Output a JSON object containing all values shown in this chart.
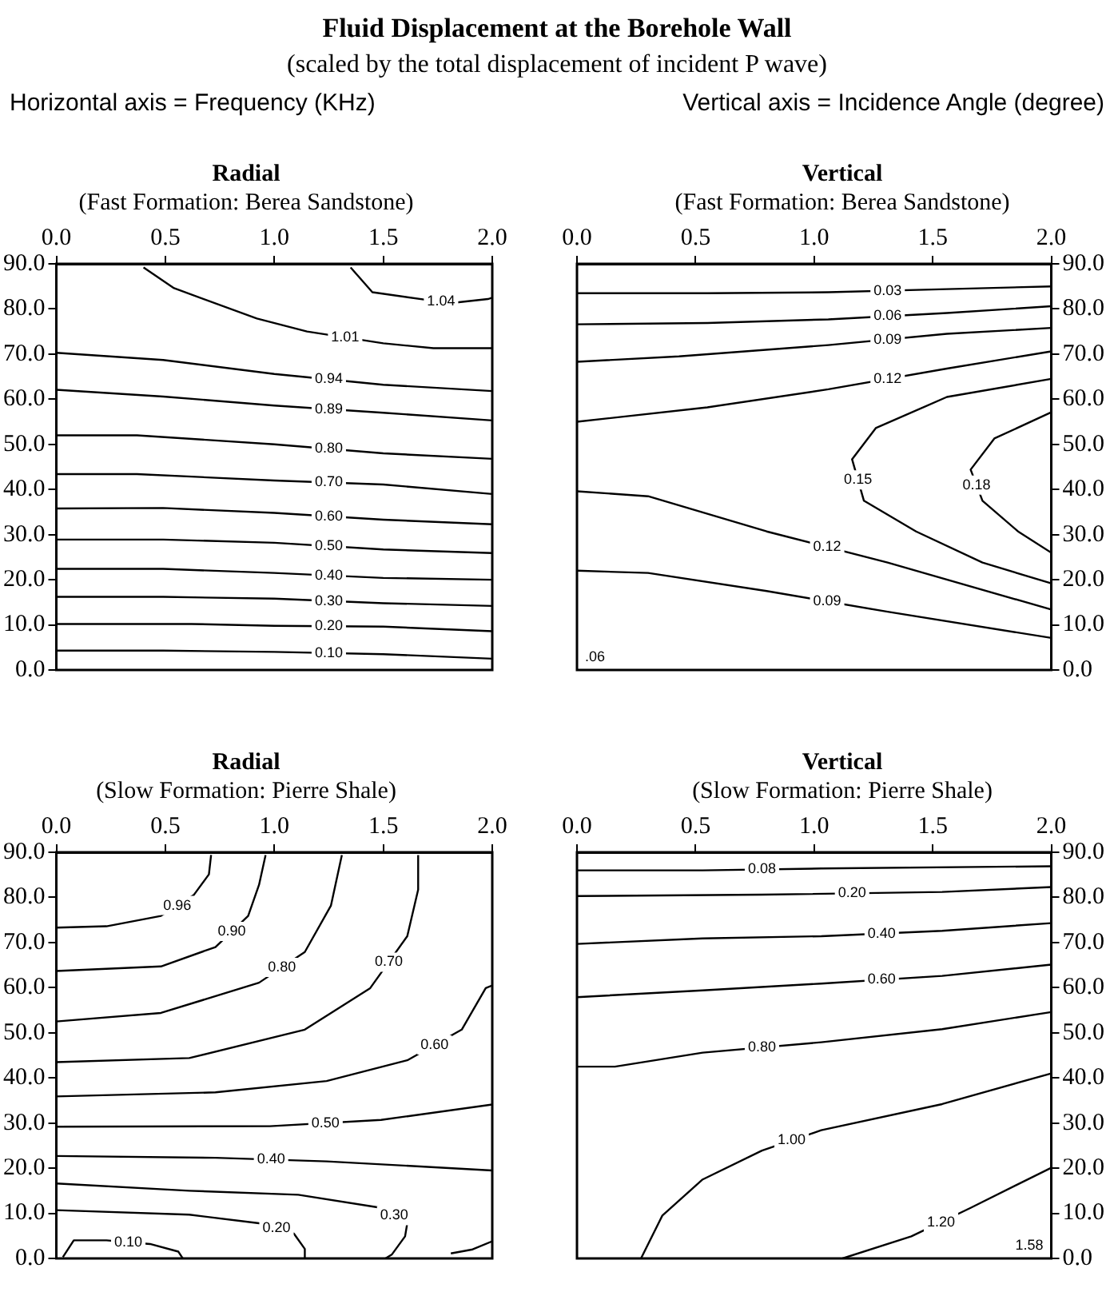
{
  "chart_data": [
    {
      "type": "line",
      "title": "Radial",
      "subtitle": "(Fast Formation: Berea Sandstone)",
      "annotations": [
        "Fluid Displacement at the Borehole Wall",
        "(scaled by the total displacement of incident P wave)",
        "Horizontal axis =  Frequency (KHz)",
        "Vertical axis =  Incidence Angle (degree)"
      ],
      "xlim": [
        0,
        2
      ],
      "xticks": [
        {
          "value": 0,
          "label": "0.0"
        },
        {
          "value": 0.5,
          "label": "0.5"
        },
        {
          "value": 1,
          "label": "1.0"
        },
        {
          "value": 1.5,
          "label": "1.5"
        },
        {
          "value": 2,
          "label": "2.0"
        }
      ],
      "ylim": [
        0,
        90
      ],
      "yticks": [
        {
          "value": 0,
          "label": "0.0"
        },
        {
          "value": 10,
          "label": "10.0"
        },
        {
          "value": 20,
          "label": "20.0"
        },
        {
          "value": 30,
          "label": "30.0"
        },
        {
          "value": 40,
          "label": "40.0"
        },
        {
          "value": 50,
          "label": "50.0"
        },
        {
          "value": 60,
          "label": "60.0"
        },
        {
          "value": 70,
          "label": "70.0"
        },
        {
          "value": 80,
          "label": "80.0"
        },
        {
          "value": 90,
          "label": "90.0"
        }
      ],
      "grid": false,
      "legend": false,
      "marker": "none",
      "series": [
        {
          "name": "1.04",
          "color": "#000000",
          "x": [
            1.35,
            1.45,
            1.7,
            1.83,
            1.98,
            2.0
          ],
          "values": [
            89.2,
            83.7,
            82.0,
            81.4,
            82.2,
            82.5
          ]
        },
        {
          "name": "1.01",
          "color": "#000000",
          "x": [
            0.4,
            0.54,
            0.92,
            1.15,
            1.5,
            1.73,
            2.0
          ],
          "values": [
            89.2,
            84.6,
            77.9,
            75.0,
            72.4,
            71.3,
            71.3
          ]
        },
        {
          "name": "0.94",
          "color": "#000000",
          "x": [
            0,
            0.49,
            1.0,
            1.5,
            2.0
          ],
          "values": [
            70.3,
            68.7,
            65.6,
            63.2,
            61.8
          ]
        },
        {
          "name": "0.89",
          "color": "#000000",
          "x": [
            0,
            0.49,
            1.0,
            1.5,
            2.0
          ],
          "values": [
            62.1,
            60.6,
            58.6,
            57.0,
            55.3
          ]
        },
        {
          "name": "0.80",
          "color": "#000000",
          "x": [
            0,
            0.37,
            1.0,
            1.5,
            2.0
          ],
          "values": [
            52.0,
            52.0,
            50.0,
            48.0,
            46.8
          ]
        },
        {
          "name": "0.70",
          "color": "#000000",
          "x": [
            0,
            0.37,
            1.0,
            1.5,
            2.0
          ],
          "values": [
            43.4,
            43.4,
            42.0,
            41.1,
            39.0
          ]
        },
        {
          "name": "0.60",
          "color": "#000000",
          "x": [
            0,
            0.49,
            1.0,
            1.5,
            2.0
          ],
          "values": [
            35.8,
            35.9,
            34.8,
            33.3,
            32.3
          ]
        },
        {
          "name": "0.50",
          "color": "#000000",
          "x": [
            0,
            0.49,
            1.0,
            1.5,
            2.0
          ],
          "values": [
            28.9,
            28.9,
            28.2,
            26.7,
            25.9
          ]
        },
        {
          "name": "0.40",
          "color": "#000000",
          "x": [
            0,
            0.49,
            1.0,
            1.5,
            2.0
          ],
          "values": [
            22.4,
            22.4,
            21.5,
            20.4,
            20.0
          ]
        },
        {
          "name": "0.30",
          "color": "#000000",
          "x": [
            0,
            0.49,
            1.0,
            1.5,
            2.0
          ],
          "values": [
            16.2,
            16.2,
            15.8,
            14.8,
            14.2
          ]
        },
        {
          "name": "0.20",
          "color": "#000000",
          "x": [
            0,
            0.62,
            1.0,
            1.5,
            2.0
          ],
          "values": [
            10.2,
            10.2,
            9.8,
            9.6,
            8.6
          ]
        },
        {
          "name": "0.10",
          "color": "#000000",
          "x": [
            0,
            0.49,
            1.0,
            1.5,
            2.0
          ],
          "values": [
            4.3,
            4.3,
            4.0,
            3.5,
            2.5
          ]
        }
      ]
    },
    {
      "type": "line",
      "title": "Vertical",
      "subtitle": "(Fast Formation: Berea Sandstone)",
      "annotations": [
        ".06"
      ],
      "xlim": [
        0,
        2
      ],
      "xticks": [
        {
          "value": 0,
          "label": "0.0"
        },
        {
          "value": 0.5,
          "label": "0.5"
        },
        {
          "value": 1,
          "label": "1.0"
        },
        {
          "value": 1.5,
          "label": "1.5"
        },
        {
          "value": 2,
          "label": "2.0"
        }
      ],
      "y2lim": [
        0,
        90
      ],
      "y2ticks": [
        {
          "value": 0,
          "label": "0.0"
        },
        {
          "value": 10,
          "label": "10.0"
        },
        {
          "value": 20,
          "label": "20.0"
        },
        {
          "value": 30,
          "label": "30.0"
        },
        {
          "value": 40,
          "label": "40.0"
        },
        {
          "value": 50,
          "label": "50.0"
        },
        {
          "value": 60,
          "label": "60.0"
        },
        {
          "value": 70,
          "label": "70.0"
        },
        {
          "value": 80,
          "label": "80.0"
        },
        {
          "value": 90,
          "label": "90.0"
        }
      ],
      "grid": false,
      "legend": false,
      "marker": "none",
      "series": [
        {
          "name": "0.03",
          "color": "#000000",
          "axis": "y2",
          "x": [
            0,
            0.55,
            1.06,
            1.56,
            2.0
          ],
          "values": [
            83.5,
            83.5,
            83.7,
            84.4,
            85.0
          ]
        },
        {
          "name": "0.06",
          "color": "#000000",
          "axis": "y2",
          "x": [
            0,
            0.55,
            1.06,
            1.56,
            2.0
          ],
          "values": [
            76.6,
            76.9,
            77.7,
            79.1,
            80.6
          ]
        },
        {
          "name": "0.09",
          "color": "#000000",
          "axis": "y2",
          "x": [
            0,
            0.43,
            1.06,
            1.56,
            2.0
          ],
          "values": [
            68.3,
            69.5,
            72.0,
            74.5,
            75.8
          ]
        },
        {
          "name": "0.12",
          "color": "#000000",
          "axis": "y2",
          "x": [
            0,
            0.55,
            1.06,
            1.56,
            2.0
          ],
          "values": [
            55.0,
            58.2,
            62.2,
            66.8,
            70.6
          ]
        },
        {
          "name": "0.15",
          "color": "#000000",
          "axis": "y2",
          "x": [
            2.0,
            1.56,
            1.26,
            1.16,
            1.21,
            1.43,
            1.71,
            2.0
          ],
          "values": [
            64.5,
            60.5,
            53.6,
            46.7,
            37.5,
            30.7,
            23.8,
            19.2
          ]
        },
        {
          "name": "0.18",
          "color": "#000000",
          "axis": "y2",
          "x": [
            2.0,
            1.76,
            1.66,
            1.71,
            1.86,
            2.0
          ],
          "values": [
            57.1,
            51.3,
            44.4,
            37.5,
            30.7,
            26.0
          ]
        },
        {
          "name": "0.12",
          "color": "#000000",
          "axis": "y2",
          "x": [
            0,
            0.3,
            0.8,
            1.31,
            2.0
          ],
          "values": [
            39.6,
            38.5,
            30.7,
            23.8,
            13.4
          ]
        },
        {
          "name": "0.09",
          "color": "#000000",
          "axis": "y2",
          "x": [
            0,
            0.3,
            0.8,
            1.31,
            2.0
          ],
          "values": [
            22.0,
            21.5,
            17.5,
            12.9,
            7.1
          ]
        }
      ]
    },
    {
      "type": "line",
      "title": "Radial",
      "subtitle": "(Slow Formation: Pierre Shale)",
      "xlim": [
        0,
        2
      ],
      "xticks": [
        {
          "value": 0,
          "label": "0.0"
        },
        {
          "value": 0.5,
          "label": "0.5"
        },
        {
          "value": 1,
          "label": "1.0"
        },
        {
          "value": 1.5,
          "label": "1.5"
        },
        {
          "value": 2,
          "label": "2.0"
        }
      ],
      "ylim": [
        0,
        90
      ],
      "yticks": [
        {
          "value": 0,
          "label": "0.0"
        },
        {
          "value": 10,
          "label": "10.0"
        },
        {
          "value": 20,
          "label": "20.0"
        },
        {
          "value": 30,
          "label": "30.0"
        },
        {
          "value": 40,
          "label": "40.0"
        },
        {
          "value": 50,
          "label": "50.0"
        },
        {
          "value": 60,
          "label": "60.0"
        },
        {
          "value": 70,
          "label": "70.0"
        },
        {
          "value": 80,
          "label": "80.0"
        },
        {
          "value": 90,
          "label": "90.0"
        }
      ],
      "grid": false,
      "legend": false,
      "marker": "none",
      "series": [
        {
          "name": "0.96",
          "color": "#000000",
          "x": [
            0,
            0.23,
            0.48,
            0.63,
            0.7,
            0.71
          ],
          "values": [
            73.3,
            73.6,
            75.9,
            80.5,
            85.1,
            89.4
          ]
        },
        {
          "name": "0.90",
          "color": "#000000",
          "x": [
            0,
            0.48,
            0.73,
            0.88,
            0.93,
            0.96
          ],
          "values": [
            63.7,
            64.7,
            69.0,
            75.9,
            82.8,
            89.4
          ]
        },
        {
          "name": "0.80",
          "color": "#000000",
          "x": [
            0,
            0.48,
            0.93,
            1.14,
            1.26,
            1.31
          ],
          "values": [
            52.5,
            54.4,
            61.1,
            67.9,
            78.2,
            89.4
          ]
        },
        {
          "name": "0.70",
          "color": "#000000",
          "x": [
            0,
            0.61,
            1.14,
            1.44,
            1.61,
            1.66,
            1.66
          ],
          "values": [
            43.5,
            44.4,
            50.7,
            59.9,
            71.4,
            81.7,
            89.4
          ]
        },
        {
          "name": "0.60",
          "color": "#000000",
          "x": [
            0,
            0.73,
            1.24,
            1.61,
            1.86,
            1.97,
            2.0
          ],
          "values": [
            35.9,
            36.8,
            39.3,
            43.9,
            50.7,
            59.9,
            60.5
          ]
        },
        {
          "name": "0.50",
          "color": "#000000",
          "x": [
            0,
            0.98,
            1.49,
            2.0
          ],
          "values": [
            29.2,
            29.3,
            30.7,
            34.1
          ]
        },
        {
          "name": "0.40",
          "color": "#000000",
          "x": [
            0,
            0.73,
            1.24,
            2.0
          ],
          "values": [
            22.7,
            22.3,
            21.5,
            19.5
          ]
        },
        {
          "name": "0.30",
          "color": "#000000",
          "x": [
            0,
            0.61,
            1.11,
            1.49,
            1.61,
            1.6,
            1.54,
            1.51
          ],
          "values": [
            16.6,
            15.0,
            14.1,
            11.2,
            7.8,
            4.9,
            0.9,
            0
          ]
        },
        {
          "name": "0.20",
          "color": "#000000",
          "x": [
            0,
            0.61,
            0.93,
            1.09,
            1.14,
            1.14
          ],
          "values": [
            10.7,
            9.7,
            7.8,
            5.5,
            2.1,
            0
          ]
        },
        {
          "name": "0.10",
          "color": "#000000",
          "x": [
            0.03,
            0.08,
            0.23,
            0.43,
            0.56,
            0.58
          ],
          "values": [
            0.3,
            4.0,
            4.0,
            3.2,
            1.5,
            0
          ]
        },
        {
          "color": "#000000",
          "x": [
            1.81,
            1.91,
            2.0
          ],
          "values": [
            1.1,
            2.0,
            3.8
          ]
        }
      ]
    },
    {
      "type": "line",
      "title": "Vertical",
      "subtitle": "(Slow Formation: Pierre Shale)",
      "annotations": [
        "1.58"
      ],
      "xlim": [
        0,
        2
      ],
      "xticks": [
        {
          "value": 0,
          "label": "0.0"
        },
        {
          "value": 0.5,
          "label": "0.5"
        },
        {
          "value": 1,
          "label": "1.0"
        },
        {
          "value": 1.5,
          "label": "1.5"
        },
        {
          "value": 2,
          "label": "2.0"
        }
      ],
      "y2lim": [
        0,
        90
      ],
      "y2ticks": [
        {
          "value": 0,
          "label": "0.0"
        },
        {
          "value": 10,
          "label": "10.0"
        },
        {
          "value": 20,
          "label": "20.0"
        },
        {
          "value": 30,
          "label": "30.0"
        },
        {
          "value": 40,
          "label": "40.0"
        },
        {
          "value": 50,
          "label": "50.0"
        },
        {
          "value": 60,
          "label": "60.0"
        },
        {
          "value": 70,
          "label": "70.0"
        },
        {
          "value": 80,
          "label": "80.0"
        },
        {
          "value": 90,
          "label": "90.0"
        }
      ],
      "grid": false,
      "legend": false,
      "marker": "none",
      "series": [
        {
          "name": "0.08",
          "color": "#000000",
          "axis": "y2",
          "x": [
            0,
            0.53,
            1.03,
            2.0
          ],
          "values": [
            86.0,
            86.0,
            86.4,
            86.9
          ]
        },
        {
          "name": "0.20",
          "color": "#000000",
          "axis": "y2",
          "x": [
            0,
            0.78,
            1.54,
            2.0
          ],
          "values": [
            80.3,
            80.6,
            81.2,
            82.3
          ]
        },
        {
          "name": "0.40",
          "color": "#000000",
          "axis": "y2",
          "x": [
            0,
            0.53,
            1.03,
            1.54,
            2.0
          ],
          "values": [
            69.7,
            70.9,
            71.4,
            72.6,
            74.3
          ]
        },
        {
          "name": "0.60",
          "color": "#000000",
          "axis": "y2",
          "x": [
            0,
            0.53,
            1.03,
            1.54,
            2.0
          ],
          "values": [
            57.9,
            59.4,
            60.9,
            62.6,
            65.1
          ]
        },
        {
          "name": "0.80",
          "color": "#000000",
          "axis": "y2",
          "x": [
            0,
            0.16,
            0.53,
            1.03,
            1.54,
            2.0
          ],
          "values": [
            42.5,
            42.5,
            45.6,
            47.9,
            50.8,
            54.6
          ]
        },
        {
          "name": "1.00",
          "color": "#000000",
          "axis": "y2",
          "x": [
            0.27,
            0.36,
            0.53,
            0.78,
            1.03,
            1.54,
            2.0
          ],
          "values": [
            0,
            9.5,
            17.5,
            23.9,
            28.4,
            34.2,
            41.0
          ]
        },
        {
          "name": "1.20",
          "color": "#000000",
          "axis": "y2",
          "x": [
            1.12,
            1.41,
            1.66,
            2.0
          ],
          "values": [
            0,
            4.9,
            11.2,
            20.1
          ]
        }
      ]
    }
  ]
}
